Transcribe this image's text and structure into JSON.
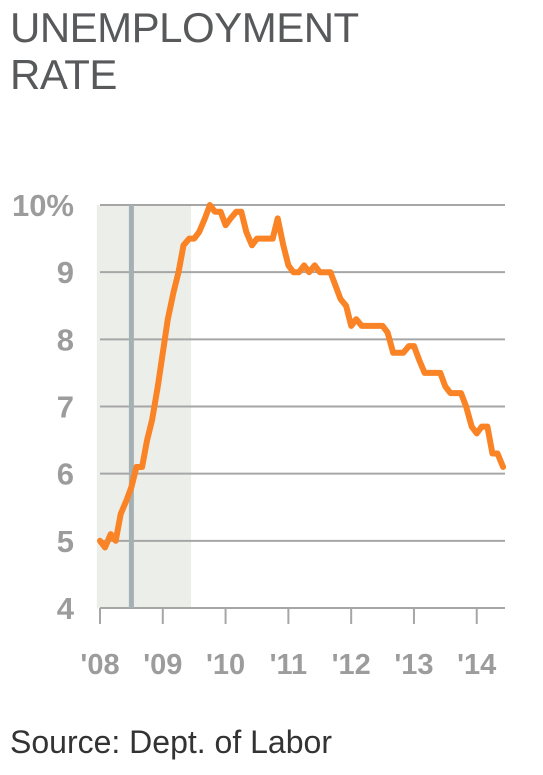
{
  "title": "UNEMPLOYMENT RATE",
  "source": "Source: Dept. of Labor",
  "colors": {
    "line": "#f98325",
    "grid": "#a6a6a6",
    "recession_shade": "#eceeea",
    "marker": "#a5b0b4",
    "tick_text": "#9c9c9c",
    "title_text": "#58595b"
  },
  "chart_data": {
    "type": "line",
    "title": "UNEMPLOYMENT RATE",
    "xlabel": "",
    "ylabel": "",
    "xlim": [
      2008.0,
      2014.45
    ],
    "ylim": [
      4,
      10
    ],
    "y_ticks": [
      {
        "value": 10,
        "label": "10%"
      },
      {
        "value": 9,
        "label": "9"
      },
      {
        "value": 8,
        "label": "8"
      },
      {
        "value": 7,
        "label": "7"
      },
      {
        "value": 6,
        "label": "6"
      },
      {
        "value": 5,
        "label": "5"
      },
      {
        "value": 4,
        "label": "4"
      }
    ],
    "x_ticks": [
      {
        "value": 2008,
        "label": "'08"
      },
      {
        "value": 2009,
        "label": "'09"
      },
      {
        "value": 2010,
        "label": "'10"
      },
      {
        "value": 2011,
        "label": "'11"
      },
      {
        "value": 2012,
        "label": "'12"
      },
      {
        "value": 2013,
        "label": "'13"
      },
      {
        "value": 2014,
        "label": "'14"
      }
    ],
    "grid": true,
    "shaded_region": {
      "from": 2007.95,
      "to": 2009.45
    },
    "vertical_marker": {
      "x": 2008.5
    },
    "series": [
      {
        "x": [
          2008.0,
          2008.08,
          2008.17,
          2008.25,
          2008.33,
          2008.42,
          2008.5,
          2008.58,
          2008.67,
          2008.75,
          2008.83,
          2008.92,
          2009.0,
          2009.08,
          2009.17,
          2009.25,
          2009.33,
          2009.42,
          2009.5,
          2009.58,
          2009.67,
          2009.75,
          2009.83,
          2009.92,
          2010.0,
          2010.08,
          2010.17,
          2010.25,
          2010.33,
          2010.42,
          2010.5,
          2010.58,
          2010.67,
          2010.75,
          2010.83,
          2010.92,
          2011.0,
          2011.08,
          2011.17,
          2011.25,
          2011.33,
          2011.42,
          2011.5,
          2011.58,
          2011.67,
          2011.75,
          2011.83,
          2011.92,
          2012.0,
          2012.08,
          2012.17,
          2012.25,
          2012.33,
          2012.42,
          2012.5,
          2012.58,
          2012.67,
          2012.75,
          2012.83,
          2012.92,
          2013.0,
          2013.08,
          2013.17,
          2013.25,
          2013.33,
          2013.42,
          2013.5,
          2013.58,
          2013.67,
          2013.75,
          2013.83,
          2013.92,
          2014.0,
          2014.08,
          2014.17,
          2014.25,
          2014.33,
          2014.42
        ],
        "values": [
          5.0,
          4.9,
          5.1,
          5.0,
          5.4,
          5.6,
          5.8,
          6.1,
          6.1,
          6.5,
          6.8,
          7.3,
          7.8,
          8.3,
          8.7,
          9.0,
          9.4,
          9.5,
          9.5,
          9.6,
          9.8,
          10.0,
          9.9,
          9.9,
          9.7,
          9.8,
          9.9,
          9.9,
          9.6,
          9.4,
          9.5,
          9.5,
          9.5,
          9.5,
          9.8,
          9.4,
          9.1,
          9.0,
          9.0,
          9.1,
          9.0,
          9.1,
          9.0,
          9.0,
          9.0,
          8.8,
          8.6,
          8.5,
          8.2,
          8.3,
          8.2,
          8.2,
          8.2,
          8.2,
          8.2,
          8.1,
          7.8,
          7.8,
          7.8,
          7.9,
          7.9,
          7.7,
          7.5,
          7.5,
          7.5,
          7.5,
          7.3,
          7.2,
          7.2,
          7.2,
          7.0,
          6.7,
          6.6,
          6.7,
          6.7,
          6.3,
          6.3,
          6.1
        ]
      }
    ]
  }
}
